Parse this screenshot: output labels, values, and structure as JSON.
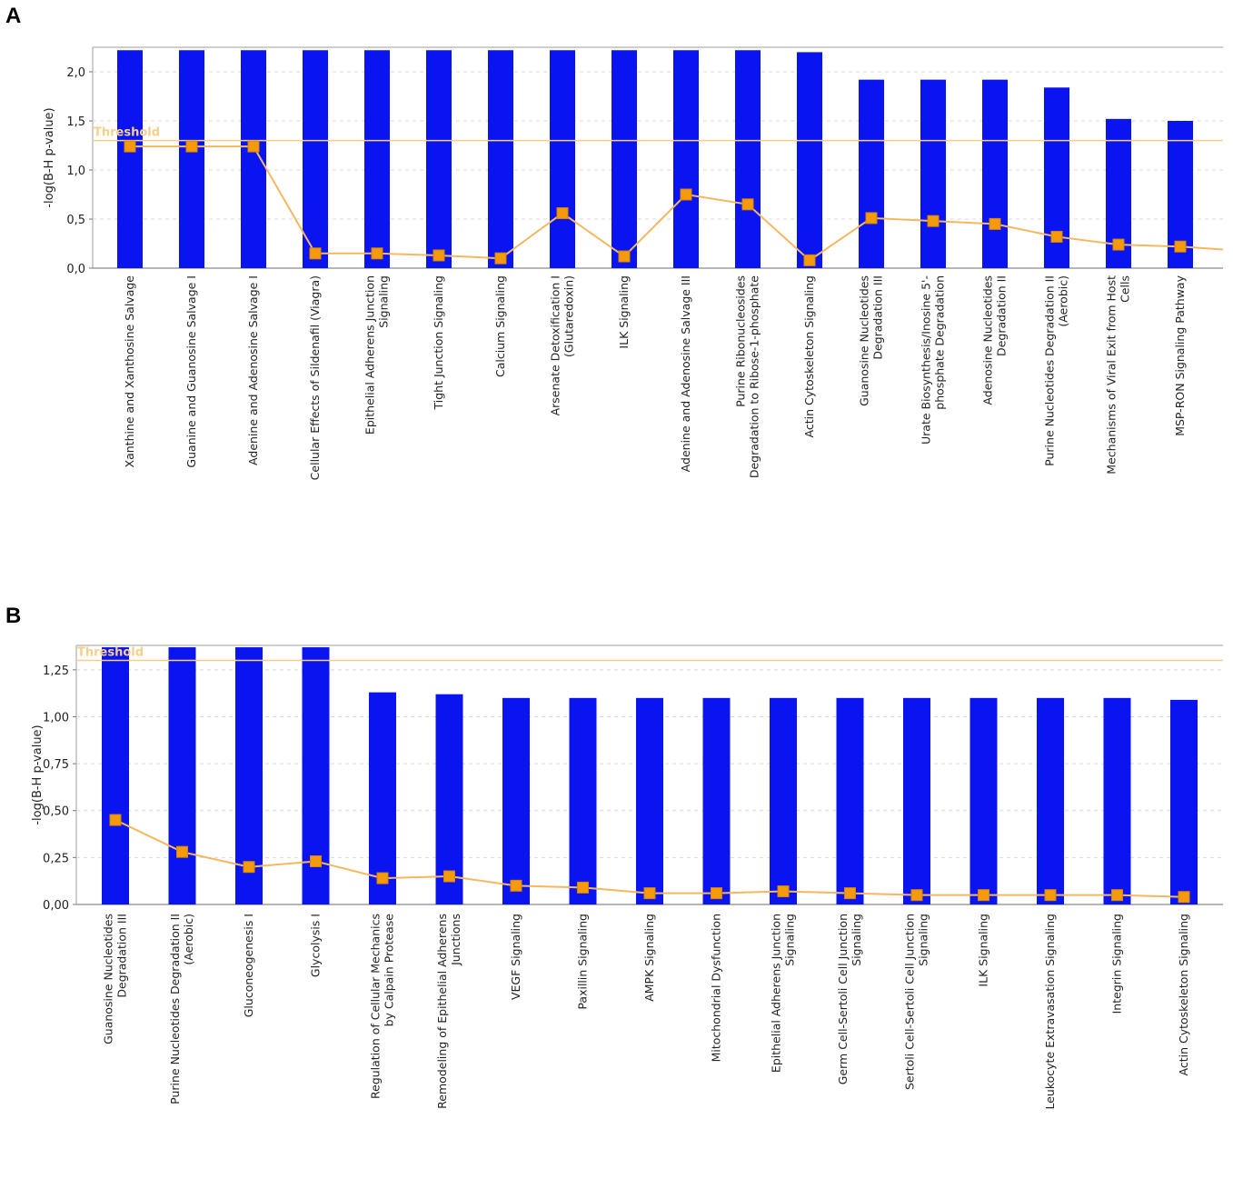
{
  "panels": {
    "a": {
      "letter": "A"
    },
    "b": {
      "letter": "B"
    }
  },
  "colors": {
    "bar": "#0a14f0",
    "ratio_line": "#f5b860",
    "ratio_marker": "#f59a0a",
    "threshold": "#f8cf8a",
    "grid": "#d9d9d9",
    "axis_box": "#bdbdbd"
  },
  "chart_data": [
    {
      "type": "bar",
      "ylabel": "-log(B-H p-value)",
      "ylim": [
        0,
        2.25
      ],
      "yticks": [
        "0,0",
        "0,5",
        "1,0",
        "1,5",
        "2,0"
      ],
      "ytick_values": [
        0,
        0.5,
        1.0,
        1.5,
        2.0
      ],
      "grid": true,
      "threshold": {
        "label": "Threshold",
        "value": 1.3
      },
      "categories": [
        [
          "Xanthine and Xanthosine Salvage"
        ],
        [
          "Guanine and Guanosine Salvage I"
        ],
        [
          "Adenine and Adenosine Salvage I"
        ],
        [
          "Cellular Effects of Sildenafil (Viagra)"
        ],
        [
          "Epithelial Adherens Junction",
          "Signaling"
        ],
        [
          "Tight Junction Signaling"
        ],
        [
          "Calcium Signaling"
        ],
        [
          "Arsenate Detoxification I",
          "(Glutaredoxin)"
        ],
        [
          "ILK Signaling"
        ],
        [
          "Adenine and Adenosine Salvage III"
        ],
        [
          "Purine Ribonucleosides",
          "Degradation to Ribose-1-phosphate"
        ],
        [
          "Actin Cytoskeleton Signaling"
        ],
        [
          "Guanosine Nucleotides",
          "Degradation III"
        ],
        [
          "Urate Biosynthesis/Inosine 5'-",
          "phosphate Degradation"
        ],
        [
          "Adenosine Nucleotides",
          "Degradation II"
        ],
        [
          "Purine Nucleotides Degradation II",
          "(Aerobic)"
        ],
        [
          "Mechanisms of Viral Exit from Host",
          "Cells"
        ],
        [
          "MSP-RON Signaling Pathway"
        ]
      ],
      "series": [
        {
          "values": [
            2.22,
            2.22,
            2.22,
            2.22,
            2.22,
            2.22,
            2.22,
            2.22,
            2.22,
            2.22,
            2.22,
            2.2,
            1.92,
            1.92,
            1.92,
            1.84,
            1.52,
            1.5
          ]
        },
        {
          "values": [
            1.24,
            1.24,
            1.24,
            0.15,
            0.15,
            0.13,
            0.1,
            0.56,
            0.12,
            0.75,
            0.65,
            0.08,
            0.51,
            0.48,
            0.45,
            0.32,
            0.24,
            0.22
          ],
          "trail": 0.19
        }
      ]
    },
    {
      "type": "bar",
      "ylabel": "-log(B-H p-value)",
      "ylim": [
        0,
        1.38
      ],
      "yticks": [
        "0,00",
        "0,25",
        "0,50",
        "0,75",
        "1,00",
        "1,25"
      ],
      "ytick_values": [
        0,
        0.25,
        0.5,
        0.75,
        1.0,
        1.25
      ],
      "grid": true,
      "threshold": {
        "label": "Threshold",
        "value": 1.3
      },
      "categories": [
        [
          "Guanosine Nucleotides",
          "Degradation III"
        ],
        [
          "Purine Nucleotides Degradation II",
          "(Aerobic)"
        ],
        [
          "Gluconeogenesis I"
        ],
        [
          "Glycolysis I"
        ],
        [
          "Regulation of Cellular Mechanics",
          "by Calpain Protease"
        ],
        [
          "Remodeling of Epithelial Adherens",
          "Junctions"
        ],
        [
          "VEGF Signaling"
        ],
        [
          "Paxillin Signaling"
        ],
        [
          "AMPK Signaling"
        ],
        [
          "Mitochondrial Dysfunction"
        ],
        [
          "Epithelial Adherens Junction",
          "Signaling"
        ],
        [
          "Germ Cell-Sertoli Cell Junction",
          "Signaling"
        ],
        [
          "Sertoli Cell-Sertoli Cell Junction",
          "Signaling"
        ],
        [
          "ILK Signaling"
        ],
        [
          "Leukocyte Extravasation Signaling"
        ],
        [
          "Integrin Signaling"
        ],
        [
          "Actin Cytoskeleton Signaling"
        ]
      ],
      "series": [
        {
          "values": [
            1.37,
            1.37,
            1.37,
            1.37,
            1.13,
            1.12,
            1.1,
            1.1,
            1.1,
            1.1,
            1.1,
            1.1,
            1.1,
            1.1,
            1.1,
            1.1,
            1.09
          ]
        },
        {
          "values": [
            0.45,
            0.28,
            0.2,
            0.23,
            0.14,
            0.15,
            0.1,
            0.09,
            0.06,
            0.06,
            0.07,
            0.06,
            0.05,
            0.05,
            0.05,
            0.05,
            0.04
          ]
        }
      ]
    }
  ]
}
